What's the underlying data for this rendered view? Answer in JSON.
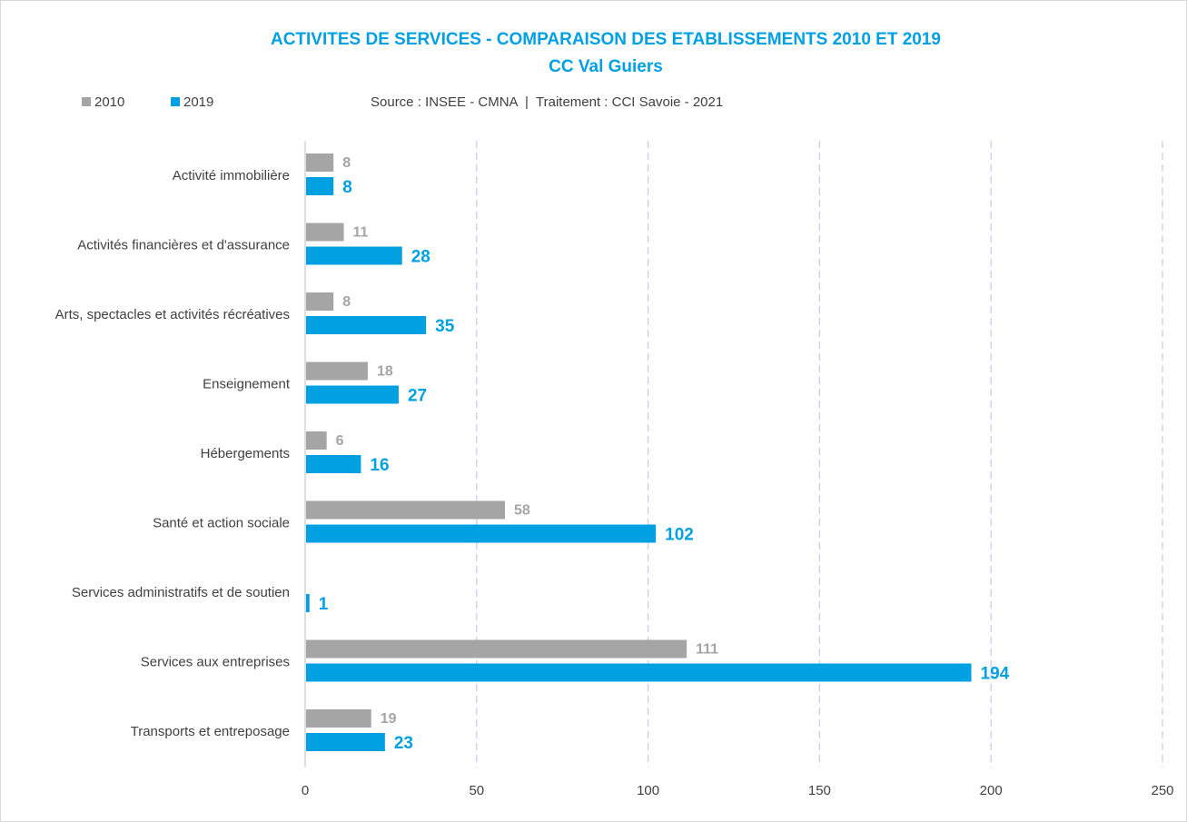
{
  "chart_data": {
    "type": "bar",
    "orientation": "horizontal",
    "title": "ACTIVITES DE SERVICES - COMPARAISON DES ETABLISSEMENTS 2010 ET 2019",
    "subtitle": "CC Val Guiers",
    "source": "Source : INSEE - CMNA  |  Traitement : CCI Savoie - 2021",
    "categories": [
      "Activité immobilière",
      "Activités financières et d'assurance",
      "Arts, spectacles et activités récréatives",
      "Enseignement",
      "Hébergements",
      "Santé et action sociale",
      "Services administratifs et de soutien",
      "Services aux entreprises",
      "Transports et entreposage"
    ],
    "series": [
      {
        "name": "2010",
        "color": "#a5a5a5",
        "values": [
          8,
          11,
          8,
          18,
          6,
          58,
          null,
          111,
          19
        ]
      },
      {
        "name": "2019",
        "color": "#00a0e3",
        "values": [
          8,
          28,
          35,
          27,
          16,
          102,
          1,
          194,
          23
        ]
      }
    ],
    "xlim": [
      0,
      250
    ],
    "xticks": [
      0,
      50,
      100,
      150,
      200,
      250
    ],
    "grid": true,
    "legend": "top-left"
  }
}
